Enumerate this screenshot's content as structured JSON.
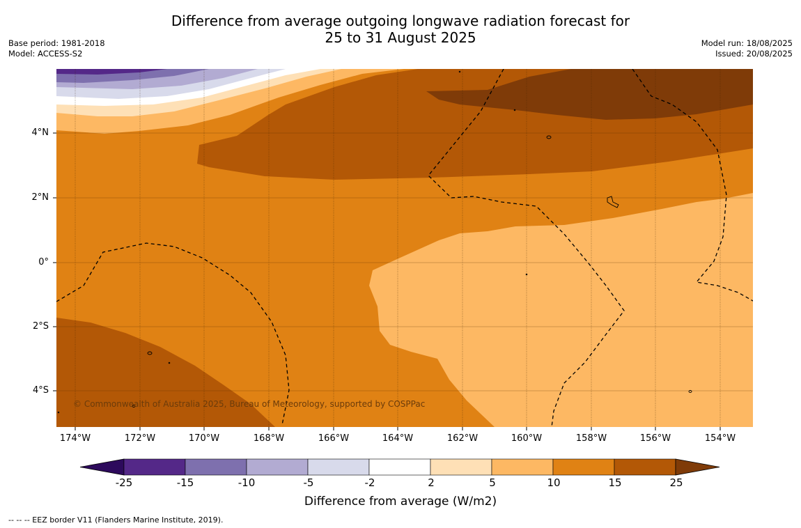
{
  "header": {
    "title_line1": "Difference from average outgoing longwave radiation forecast for",
    "title_line2": "25 to 31 August 2025",
    "base_period": "Base period: 1981-2018",
    "model": "Model: ACCESS-S2",
    "model_run": "Model run: 18/08/2025",
    "issued": "Issued: 20/08/2025"
  },
  "map": {
    "copyright": "© Commonwealth of Australia 2025, Bureau of Meteorology, supported by COSPPac",
    "lat_labels": [
      "4°N",
      "2°N",
      "0°",
      "2°S",
      "4°S"
    ],
    "lon_labels": [
      "174°W",
      "172°W",
      "170°W",
      "168°W",
      "166°W",
      "164°W",
      "162°W",
      "160°W",
      "158°W",
      "156°W",
      "154°W"
    ]
  },
  "colorbar": {
    "title": "Difference from average (W/m2)",
    "ticks": [
      "-25",
      "-15",
      "-10",
      "-5",
      "-2",
      "2",
      "5",
      "10",
      "15",
      "25"
    ],
    "colors": [
      "#2d0a5c",
      "#542888",
      "#7e70ae",
      "#b2abd2",
      "#d8daeb",
      "#ffffff",
      "#fee0b6",
      "#fdb863",
      "#e08214",
      "#b35806",
      "#7f3b08"
    ]
  },
  "footnote": "--  --  -- EEZ border V11 (Flanders Marine Institute, 2019)."
}
